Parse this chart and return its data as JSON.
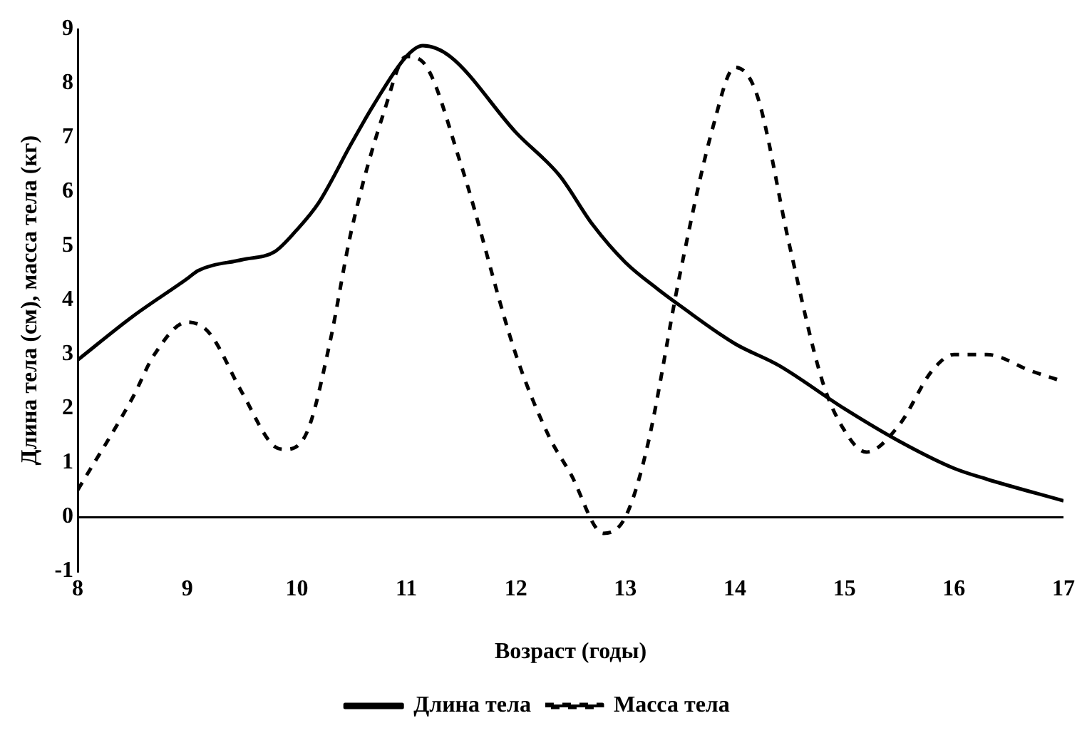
{
  "chart_data": {
    "type": "line",
    "xlabel": "Возраст (годы)",
    "ylabel": "Длина тела (см), масса тела (кг)",
    "xlim": [
      8,
      17
    ],
    "xticks": [
      8,
      9,
      10,
      11,
      12,
      13,
      14,
      15,
      16,
      17
    ],
    "ylim": [
      -1,
      9
    ],
    "yticks": [
      -1,
      0,
      1,
      2,
      3,
      4,
      5,
      6,
      7,
      8,
      9
    ],
    "grid": false,
    "legend": "bottom",
    "marker": "none",
    "series": [
      {
        "name": "Длина тела",
        "color": "#000000",
        "line_style": "solid",
        "x": [
          8,
          8.5,
          9,
          9.1,
          9.5,
          9.8,
          10,
          10.2,
          10.5,
          10.7,
          11,
          11.15,
          11.4,
          12,
          12.4,
          12.7,
          13,
          13.3,
          13.5,
          14,
          14.4,
          15,
          15.5,
          16,
          16.3,
          17
        ],
        "values": [
          2.9,
          3.7,
          4.4,
          4.55,
          4.75,
          4.9,
          5.3,
          5.8,
          6.9,
          7.6,
          8.5,
          8.7,
          8.5,
          7.1,
          6.3,
          5.4,
          4.7,
          4.2,
          3.9,
          3.2,
          2.8,
          2.0,
          1.4,
          0.9,
          0.7,
          0.3
        ]
      },
      {
        "name": "Масса тела",
        "color": "#000000",
        "line_style": "dashed",
        "x": [
          8,
          8.5,
          8.7,
          9,
          9.2,
          9.5,
          9.8,
          9.9,
          10.1,
          10.3,
          10.5,
          10.8,
          11,
          11.15,
          11.5,
          12,
          12.3,
          12.5,
          12.8,
          13,
          13.2,
          13.5,
          13.8,
          14,
          14.2,
          14.5,
          14.8,
          15,
          15.2,
          15.5,
          15.8,
          16,
          16.3,
          16.7,
          17
        ],
        "values": [
          0.5,
          2.2,
          3.0,
          3.6,
          3.4,
          2.3,
          1.3,
          1.25,
          1.6,
          3.2,
          5.3,
          7.5,
          8.5,
          8.4,
          6.5,
          3.0,
          1.5,
          0.8,
          -0.3,
          0.0,
          1.3,
          4.5,
          7.2,
          8.3,
          7.8,
          5.0,
          2.5,
          1.6,
          1.2,
          1.7,
          2.7,
          3.0,
          3.0,
          2.7,
          2.5
        ]
      }
    ]
  }
}
